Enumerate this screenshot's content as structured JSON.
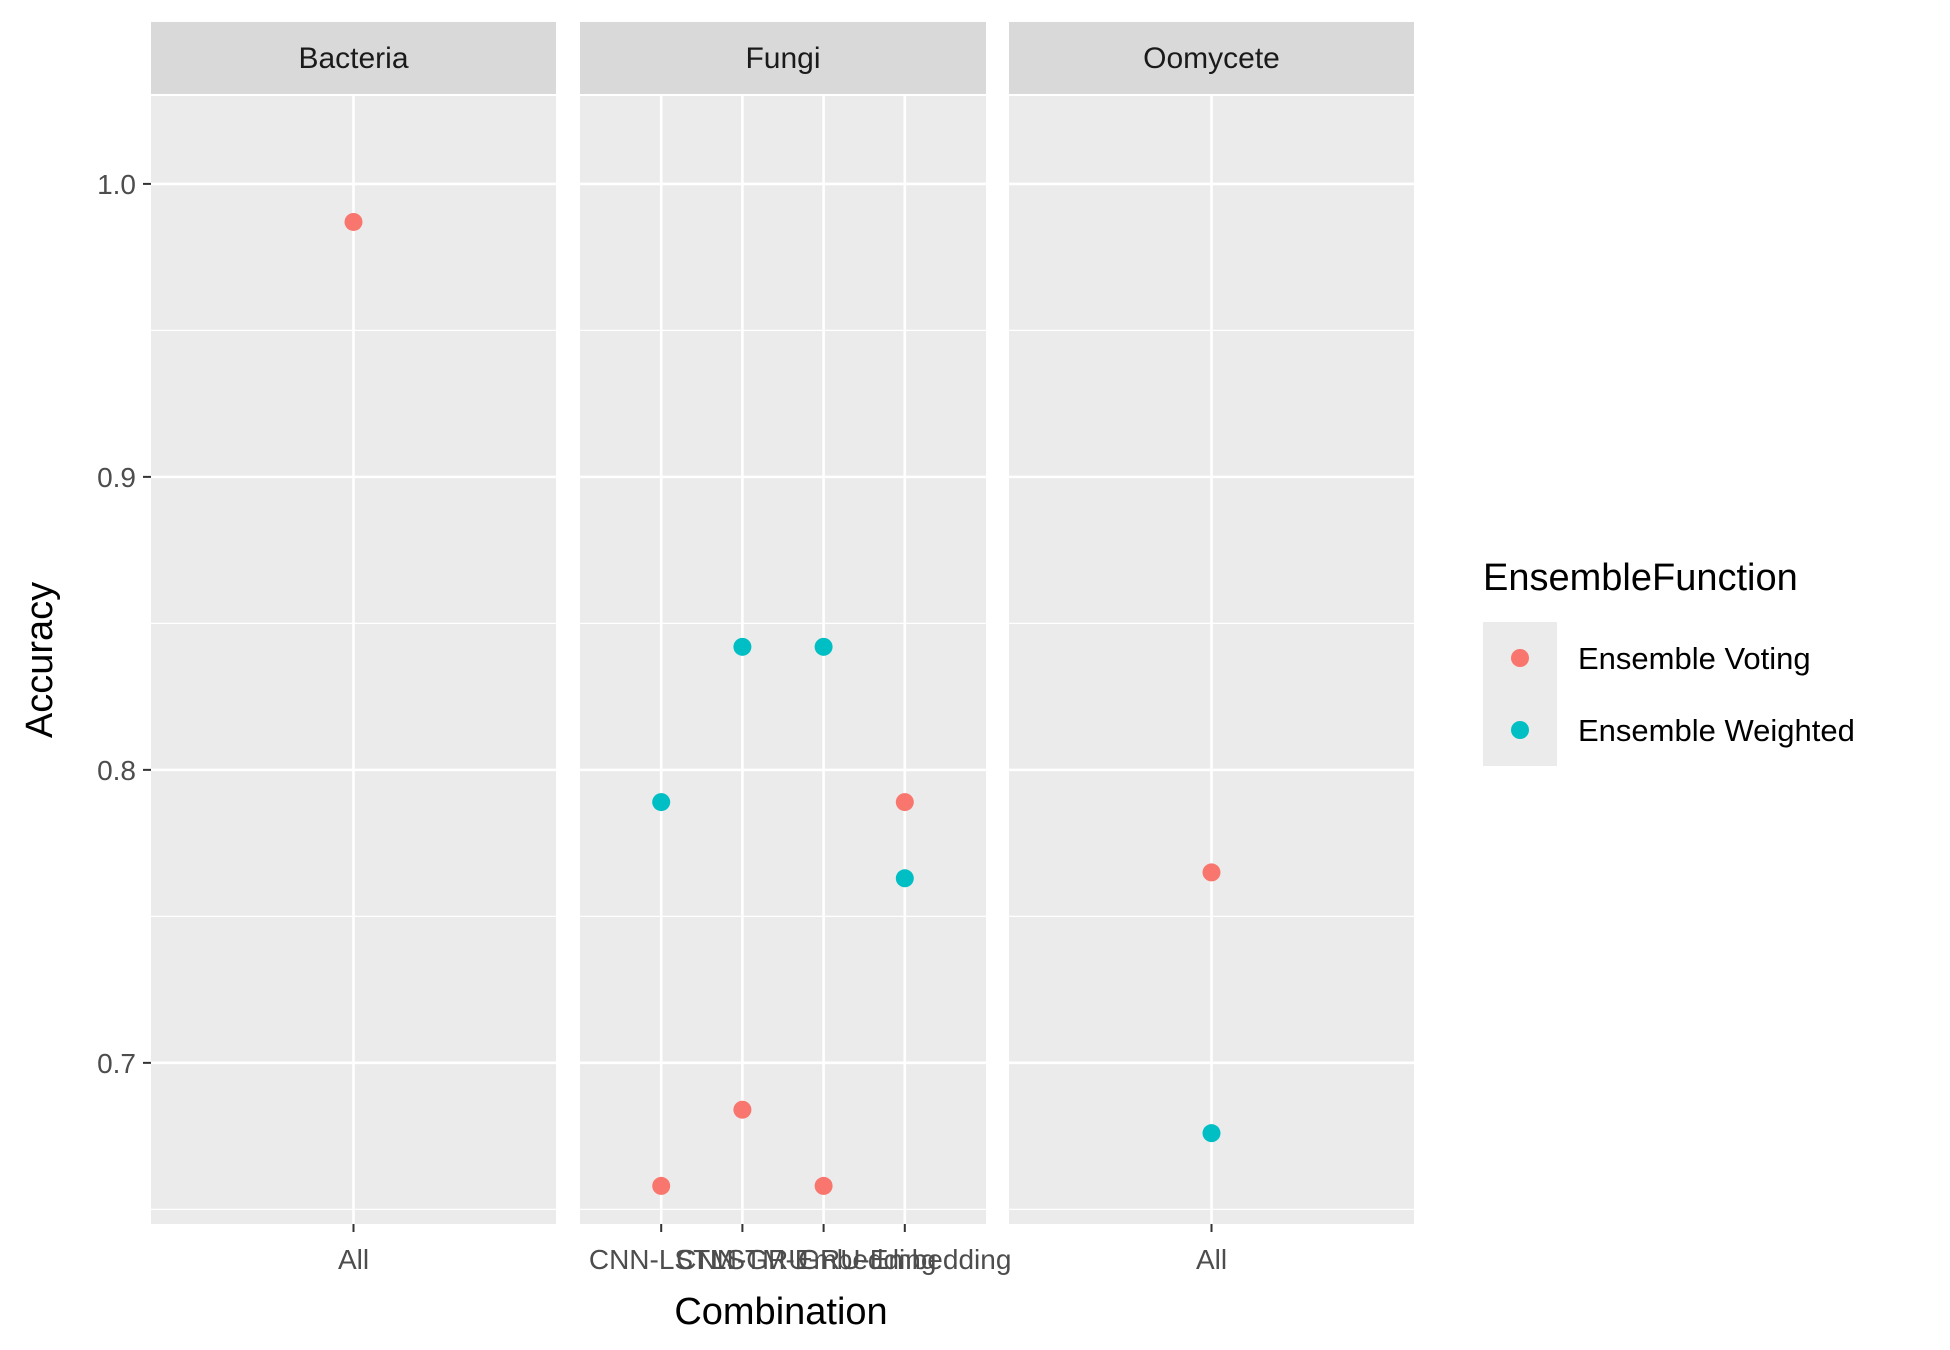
{
  "chart_data": {
    "type": "scatter",
    "xlabel": "Combination",
    "ylabel": "Accuracy",
    "ylim": [
      0.645,
      1.03
    ],
    "y_ticks": [
      "0.7",
      "0.8",
      "0.9",
      "1.0"
    ],
    "grid": true,
    "legend": {
      "title": "EnsembleFunction",
      "position": "right",
      "items": [
        {
          "label": "Ensemble Voting",
          "color": "#F8766D"
        },
        {
          "label": "Ensemble Weighted",
          "color": "#00BFC4"
        }
      ]
    },
    "panels": [
      {
        "name": "Bacteria",
        "categories": [
          "All"
        ],
        "series": [
          {
            "name": "Ensemble Voting",
            "values": [
              0.987
            ]
          },
          {
            "name": "Ensemble Weighted",
            "values": [
              null
            ]
          }
        ]
      },
      {
        "name": "Fungi",
        "categories": [
          "CNN-LSTM",
          "CNN-GRU",
          "LSTM-Embedding",
          "GRU-Embedding"
        ],
        "series": [
          {
            "name": "Ensemble Voting",
            "values": [
              0.658,
              0.684,
              0.658,
              0.789
            ]
          },
          {
            "name": "Ensemble Weighted",
            "values": [
              0.789,
              0.842,
              0.842,
              0.763
            ]
          }
        ]
      },
      {
        "name": "Oomycete",
        "categories": [
          "All"
        ],
        "series": [
          {
            "name": "Ensemble Voting",
            "values": [
              0.765
            ]
          },
          {
            "name": "Ensemble Weighted",
            "values": [
              0.676
            ]
          }
        ]
      }
    ]
  }
}
